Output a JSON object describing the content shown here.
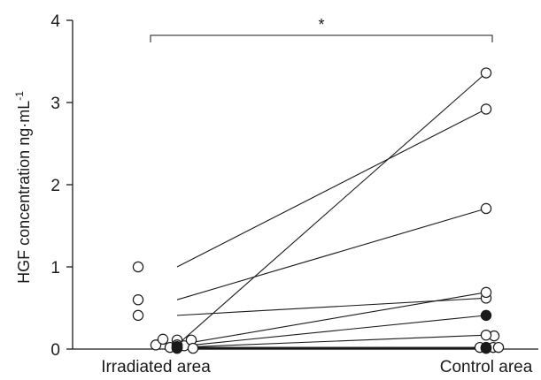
{
  "chart_data": {
    "type": "scatter",
    "title": "",
    "xlabel": "",
    "ylabel": "HGF concentration ng·mL",
    "ylabel_superscript": "-1",
    "categories": [
      "Irradiated area",
      "Control area"
    ],
    "yticks": [
      0,
      1,
      2,
      3,
      4
    ],
    "ylim": [
      0,
      4
    ],
    "significance": "*",
    "colors": {
      "line": "#1a1a1a",
      "open_marker_fill": "#ffffff",
      "filled_marker_fill": "#1a1a1a"
    },
    "pairs": [
      {
        "irradiated": 1.0,
        "control": 2.92,
        "marker": "open"
      },
      {
        "irradiated": 0.6,
        "control": 1.71,
        "marker": "open"
      },
      {
        "irradiated": 0.41,
        "control": 0.62,
        "marker": "open"
      },
      {
        "irradiated": 0.05,
        "control": 3.36,
        "marker": "open"
      },
      {
        "irradiated": 0.05,
        "control": 0.69,
        "marker": "open"
      },
      {
        "irradiated": 0.03,
        "control": 0.41,
        "marker": "filled"
      },
      {
        "irradiated": 0.02,
        "control": 0.17,
        "marker": "open"
      },
      {
        "irradiated": 0.02,
        "control": 0.02,
        "marker": "open"
      },
      {
        "irradiated": 0.01,
        "control": 0.01,
        "marker": "open"
      },
      {
        "irradiated": 0.01,
        "control": 0.01,
        "marker": "filled"
      }
    ],
    "extra_points": [
      {
        "group": "irradiated",
        "offset": -24,
        "value": 0.05
      },
      {
        "group": "irradiated",
        "offset": -16,
        "value": 0.12
      },
      {
        "group": "irradiated",
        "offset": -8,
        "value": 0.02
      },
      {
        "group": "irradiated",
        "offset": 0,
        "value": 0.11
      },
      {
        "group": "irradiated",
        "offset": 8,
        "value": 0.04
      },
      {
        "group": "irradiated",
        "offset": 16,
        "value": 0.11
      },
      {
        "group": "irradiated",
        "offset": 18,
        "value": 0.01
      },
      {
        "group": "control",
        "offset": 9,
        "value": 0.16
      },
      {
        "group": "control",
        "offset": -7,
        "value": 0.02
      },
      {
        "group": "control",
        "offset": 0,
        "value": 0.02
      },
      {
        "group": "control",
        "offset": 8,
        "value": 0.02
      },
      {
        "group": "control",
        "offset": 14,
        "value": 0.02
      }
    ]
  }
}
